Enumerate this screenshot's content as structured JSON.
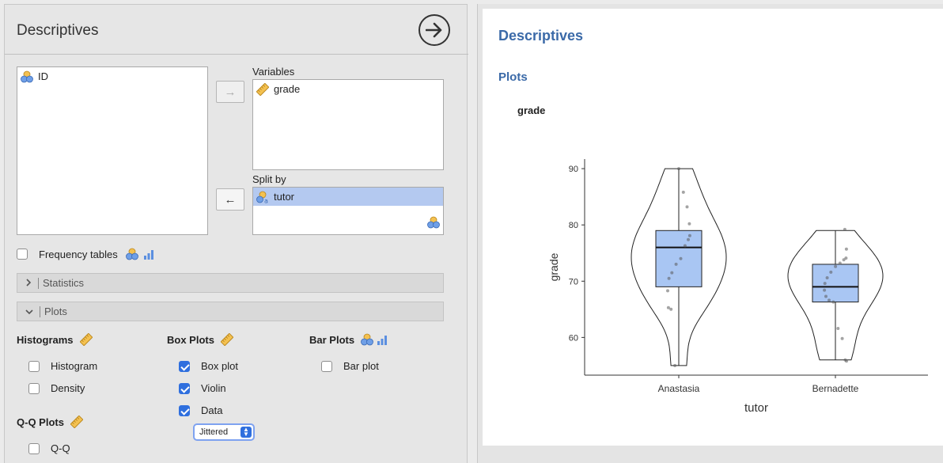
{
  "options_panel": {
    "title": "Descriptives",
    "available_variables": [
      {
        "name": "ID",
        "icon": "nominal-variable-icon"
      }
    ],
    "variables_label": "Variables",
    "variables": [
      {
        "name": "grade",
        "icon": "continuous-variable-icon"
      }
    ],
    "split_by_label": "Split by",
    "split_by": [
      {
        "name": "tutor",
        "icon": "nominal-text-variable-icon"
      }
    ],
    "frequency_tables_label": "Frequency tables",
    "frequency_tables_checked": false,
    "sections": {
      "statistics": "Statistics",
      "plots": "Plots"
    },
    "histograms": {
      "title": "Histograms",
      "histogram_label": "Histogram",
      "histogram_checked": false,
      "density_label": "Density",
      "density_checked": false
    },
    "box_plots": {
      "title": "Box Plots",
      "box_plot_label": "Box plot",
      "box_plot_checked": true,
      "violin_label": "Violin",
      "violin_checked": true,
      "data_label": "Data",
      "data_checked": true,
      "data_mode": "Jittered"
    },
    "bar_plots": {
      "title": "Bar Plots",
      "bar_plot_label": "Bar plot",
      "bar_plot_checked": false
    },
    "qq_plots": {
      "title": "Q-Q Plots",
      "qq_label": "Q-Q",
      "qq_checked": false
    }
  },
  "results_panel": {
    "title": "Descriptives",
    "plots_heading": "Plots",
    "plot_variable_title": "grade"
  },
  "chart_data": {
    "type": "box-violin",
    "xlabel": "tutor",
    "ylabel": "grade",
    "categories": [
      "Anastasia",
      "Bernadette"
    ],
    "y_ticks": [
      60,
      70,
      80,
      90
    ],
    "ylim": [
      53.3,
      91.7
    ],
    "box_fill": "#a9c6f3",
    "groups": [
      {
        "name": "Anastasia",
        "min": 55,
        "q1": 69,
        "median": 76,
        "q3": 79,
        "max": 90,
        "points": [
          90,
          85.8,
          83.2,
          80.2,
          78.1,
          77.4,
          76.3,
          74,
          73,
          71.5,
          70.5,
          68.3,
          65.3,
          65,
          55
        ]
      },
      {
        "name": "Bernadette",
        "min": 56,
        "q1": 66.3,
        "median": 69,
        "q3": 73,
        "max": 79,
        "points": [
          79.2,
          75.7,
          74.1,
          73.8,
          73.2,
          72.6,
          71.6,
          70.6,
          69.6,
          68.4,
          67.3,
          66.6,
          66.3,
          61.6,
          59.8,
          56,
          55.8
        ]
      }
    ],
    "grid": false
  }
}
